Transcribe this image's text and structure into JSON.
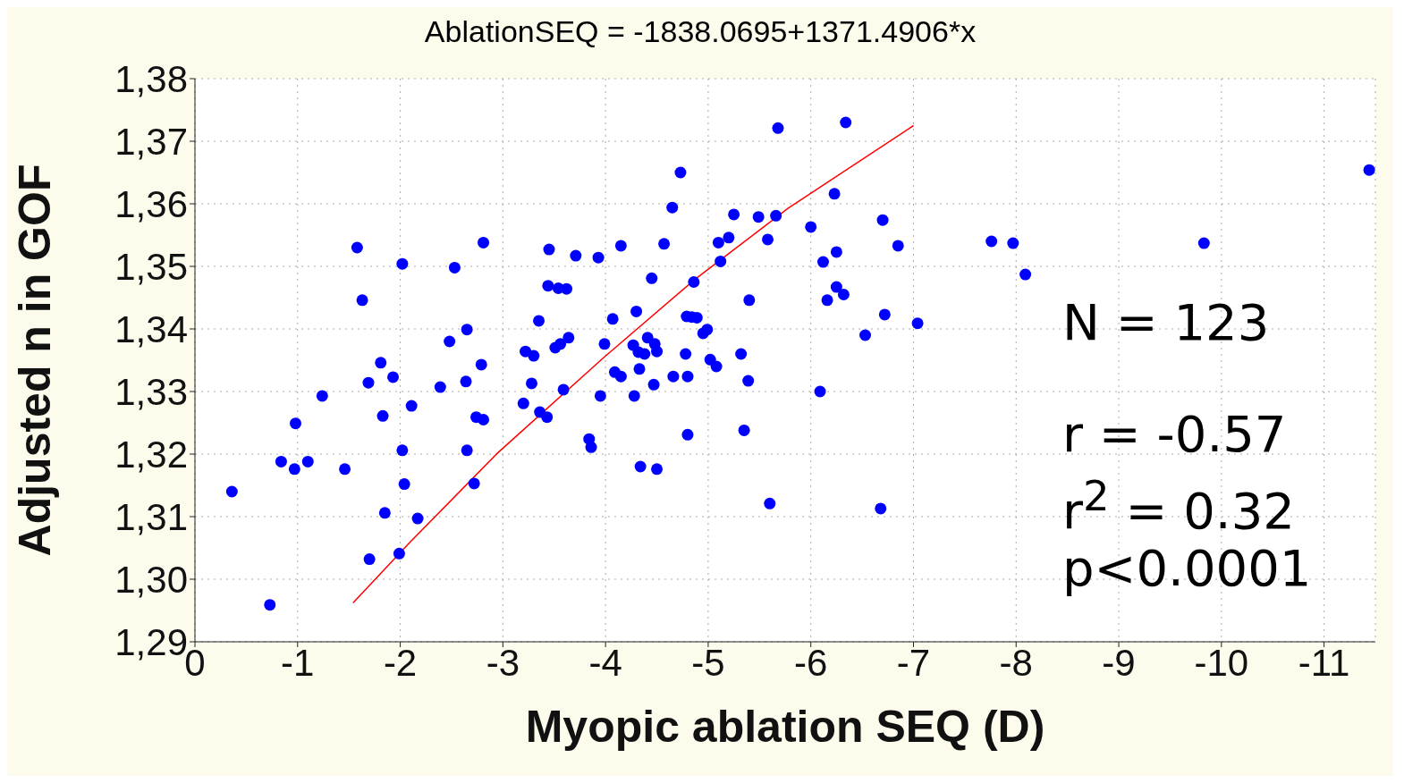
{
  "chart_data": {
    "type": "scatter",
    "title": "AblationSEQ = -1838.0695+1371.4906*x",
    "xlabel": "Myopic ablation SEQ (D)",
    "ylabel": "Adjusted n in GOF",
    "annotations": [
      "N = 123",
      "r = -0.57",
      "r$^{2}$ = 0.32",
      "p<0.0001"
    ],
    "xlim": [
      0,
      -11.5
    ],
    "xticks": [
      0,
      -1,
      -2,
      -3,
      -4,
      -5,
      -6,
      -7,
      -8,
      -9,
      -10,
      -11
    ],
    "ylim": [
      1.29,
      1.38
    ],
    "yticks": [
      {
        "value": 1.29,
        "label": "1,29"
      },
      {
        "value": 1.3,
        "label": "1,30"
      },
      {
        "value": 1.31,
        "label": "1,31"
      },
      {
        "value": 1.32,
        "label": "1,32"
      },
      {
        "value": 1.33,
        "label": "1,33"
      },
      {
        "value": 1.34,
        "label": "1,34"
      },
      {
        "value": 1.35,
        "label": "1,35"
      },
      {
        "value": 1.36,
        "label": "1,36"
      },
      {
        "value": 1.37,
        "label": "1,37"
      },
      {
        "value": 1.38,
        "label": "1,38"
      }
    ],
    "grid": true,
    "series": [
      {
        "color": "#0000ff",
        "marker": "circle",
        "x": [
          -0.36,
          -0.73,
          -0.84,
          -0.97,
          -0.98,
          -1.1,
          -1.24,
          -1.46,
          -1.58,
          -1.63,
          -1.69,
          -1.7,
          -1.81,
          -1.83,
          -1.85,
          -1.93,
          -1.99,
          -2.02,
          -2.02,
          -2.04,
          -2.11,
          -2.17,
          -2.39,
          -2.48,
          -2.53,
          -2.64,
          -2.65,
          -2.65,
          -2.72,
          -2.74,
          -2.79,
          -2.81,
          -2.81,
          -3.2,
          -3.22,
          -3.28,
          -3.3,
          -3.35,
          -3.36,
          -3.43,
          -3.45,
          -3.44,
          -3.51,
          -3.54,
          -3.56,
          -3.59,
          -3.62,
          -3.64,
          -3.71,
          -3.84,
          -3.86,
          -3.93,
          -3.95,
          -3.99,
          -4.07,
          -4.09,
          -4.15,
          -4.15,
          -4.28,
          -4.3,
          -4.27,
          -4.32,
          -4.34,
          -4.33,
          -4.38,
          -4.41,
          -4.45,
          -4.47,
          -4.48,
          -4.5,
          -4.5,
          -4.57,
          -4.65,
          -4.66,
          -4.73,
          -4.78,
          -4.8,
          -4.8,
          -4.79,
          -4.84,
          -4.89,
          -4.86,
          -4.95,
          -4.99,
          -5.02,
          -5.08,
          -5.1,
          -5.12,
          -5.2,
          -5.25,
          -5.32,
          -5.35,
          -5.39,
          -5.4,
          -5.49,
          -5.58,
          -5.6,
          -5.66,
          -5.68,
          -6.0,
          -6.09,
          -6.12,
          -6.16,
          -6.23,
          -6.25,
          -6.25,
          -6.32,
          -6.34,
          -6.53,
          -6.68,
          -6.7,
          -6.72,
          -6.85,
          -7.04,
          -7.76,
          -7.97,
          -8.09,
          -9.83,
          -11.44
        ],
        "values": [
          1.314,
          1.2959,
          1.3188,
          1.3176,
          1.3249,
          1.3188,
          1.3293,
          1.3176,
          1.353,
          1.3446,
          1.3314,
          1.3032,
          1.3346,
          1.3261,
          1.3106,
          1.3323,
          1.3041,
          1.3504,
          1.3206,
          1.3152,
          1.3277,
          1.3097,
          1.3307,
          1.338,
          1.3498,
          1.3316,
          1.3399,
          1.3206,
          1.3153,
          1.3259,
          1.3343,
          1.3538,
          1.3255,
          1.3281,
          1.3364,
          1.3313,
          1.3357,
          1.3413,
          1.3267,
          1.3259,
          1.3527,
          1.3469,
          1.337,
          1.3465,
          1.3376,
          1.3303,
          1.3464,
          1.3386,
          1.3517,
          1.3224,
          1.3211,
          1.3514,
          1.3293,
          1.3376,
          1.3416,
          1.3331,
          1.3533,
          1.3324,
          1.3293,
          1.3428,
          1.3374,
          1.3363,
          1.318,
          1.3336,
          1.336,
          1.3386,
          1.3481,
          1.3311,
          1.3376,
          1.3176,
          1.3364,
          1.3536,
          1.3594,
          1.3324,
          1.365,
          1.336,
          1.3324,
          1.3231,
          1.342,
          1.3419,
          1.3418,
          1.3475,
          1.3393,
          1.3399,
          1.3351,
          1.334,
          1.3538,
          1.3508,
          1.3546,
          1.3583,
          1.336,
          1.3238,
          1.3317,
          1.3446,
          1.3579,
          1.3543,
          1.3121,
          1.3581,
          1.3721,
          1.3563,
          1.33,
          1.3507,
          1.3446,
          1.3616,
          1.3523,
          1.3467,
          1.3455,
          1.373,
          1.339,
          1.3113,
          1.3574,
          1.3423,
          1.3533,
          1.3409,
          1.354,
          1.3537,
          1.3487,
          1.3537,
          1.3654
        ]
      },
      {
        "type": "line",
        "color": "#ff0000",
        "marker": "none",
        "line_style": "solid",
        "x": [
          -1.54,
          -2.1,
          -2.95,
          -3.98,
          -4.87,
          -5.78,
          -7.0
        ],
        "values": [
          1.2962,
          1.306,
          1.3202,
          1.3354,
          1.3479,
          1.3593,
          1.3725
        ]
      }
    ]
  }
}
